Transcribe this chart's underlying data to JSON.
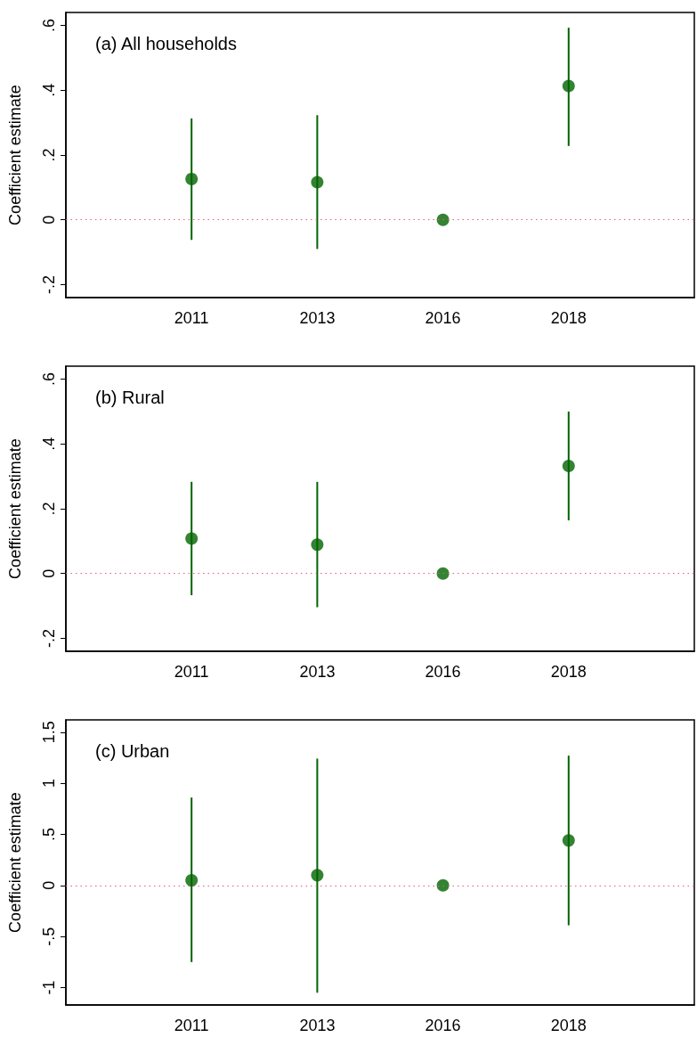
{
  "chart_data": [
    {
      "type": "scatter",
      "title": "(a) All households",
      "ylabel": "Coefficient estimate",
      "categories": [
        null,
        "2011",
        "2013",
        "2016",
        "2018",
        null
      ],
      "series": [
        {
          "color": "#006400",
          "values": [
            null,
            0.126,
            0.116,
            0,
            0.413,
            null
          ],
          "errors": [
            null,
            [
              -0.062,
              0.313
            ],
            [
              -0.09,
              0.323
            ],
            null,
            [
              0.228,
              0.593
            ],
            null
          ]
        }
      ],
      "ylim": [
        -0.24,
        0.64
      ],
      "yticks": [
        {
          "value": -0.2,
          "label": "-.2"
        },
        0,
        {
          "value": 0.2,
          "label": ".2"
        },
        {
          "value": 0.4,
          "label": ".4"
        },
        {
          "value": 0.6,
          "label": ".6"
        }
      ],
      "ref_lines": [
        {
          "axis": "y",
          "value": 0,
          "color": "#e0607e",
          "line_style": "dotted"
        }
      ],
      "marker": "circle",
      "grid": false
    },
    {
      "type": "scatter",
      "title": "(b) Rural",
      "ylabel": "Coefficient estimate",
      "categories": [
        null,
        "2011",
        "2013",
        "2016",
        "2018",
        null
      ],
      "series": [
        {
          "color": "#006400",
          "values": [
            null,
            0.108,
            0.089,
            0,
            0.332,
            null
          ],
          "errors": [
            null,
            [
              -0.067,
              0.283
            ],
            [
              -0.104,
              0.283
            ],
            null,
            [
              0.164,
              0.5
            ],
            null
          ]
        }
      ],
      "ylim": [
        -0.24,
        0.64
      ],
      "yticks": [
        {
          "value": -0.2,
          "label": "-.2"
        },
        0,
        {
          "value": 0.2,
          "label": ".2"
        },
        {
          "value": 0.4,
          "label": ".4"
        },
        {
          "value": 0.6,
          "label": ".6"
        }
      ],
      "ref_lines": [
        {
          "axis": "y",
          "value": 0,
          "color": "#e0607e",
          "line_style": "dotted"
        }
      ],
      "marker": "circle",
      "grid": false
    },
    {
      "type": "scatter",
      "title": "(c) Urban",
      "ylabel": "Coefficient estimate",
      "categories": [
        null,
        "2011",
        "2013",
        "2016",
        "2018",
        null
      ],
      "series": [
        {
          "color": "#006400",
          "values": [
            null,
            0.05,
            0.1,
            0,
            0.44,
            null
          ],
          "errors": [
            null,
            [
              -0.75,
              0.86
            ],
            [
              -1.05,
              1.24
            ],
            null,
            [
              -0.39,
              1.27
            ],
            null
          ]
        }
      ],
      "ylim": [
        -1.17,
        1.62
      ],
      "yticks": [
        -1,
        {
          "value": -0.5,
          "label": "-.5"
        },
        0,
        {
          "value": 0.5,
          "label": ".5"
        },
        1,
        1.5
      ],
      "ref_lines": [
        {
          "axis": "y",
          "value": 0,
          "color": "#e0607e",
          "line_style": "dotted"
        }
      ],
      "marker": "circle",
      "grid": false
    }
  ]
}
